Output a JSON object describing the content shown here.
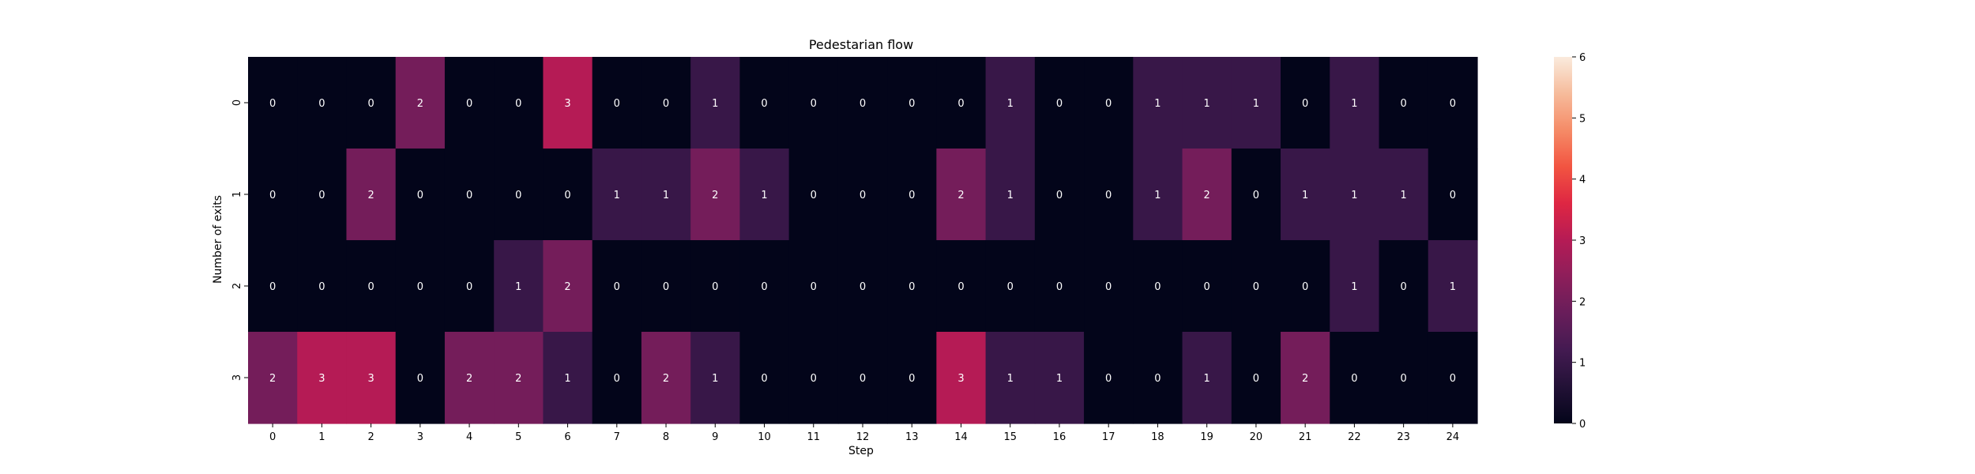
{
  "chart_data": {
    "type": "heatmap",
    "title": "Pedestarian flow",
    "xlabel": "Step",
    "ylabel": "Number of exits",
    "x_ticks": [
      "0",
      "1",
      "2",
      "3",
      "4",
      "5",
      "6",
      "7",
      "8",
      "9",
      "10",
      "11",
      "12",
      "13",
      "14",
      "15",
      "16",
      "17",
      "18",
      "19",
      "20",
      "21",
      "22",
      "23",
      "24"
    ],
    "y_ticks": [
      "0",
      "1",
      "2",
      "3"
    ],
    "values": [
      [
        0,
        0,
        0,
        2,
        0,
        0,
        3,
        0,
        0,
        1,
        0,
        0,
        0,
        0,
        0,
        1,
        0,
        0,
        1,
        1,
        1,
        0,
        1,
        0,
        0
      ],
      [
        0,
        0,
        2,
        0,
        0,
        0,
        0,
        1,
        1,
        2,
        1,
        0,
        0,
        0,
        2,
        1,
        0,
        0,
        1,
        2,
        0,
        1,
        1,
        1,
        0
      ],
      [
        0,
        0,
        0,
        0,
        0,
        1,
        2,
        0,
        0,
        0,
        0,
        0,
        0,
        0,
        0,
        0,
        0,
        0,
        0,
        0,
        0,
        0,
        1,
        0,
        1
      ],
      [
        2,
        3,
        3,
        0,
        2,
        2,
        1,
        0,
        2,
        1,
        0,
        0,
        0,
        0,
        3,
        1,
        1,
        0,
        0,
        1,
        0,
        2,
        0,
        0,
        0
      ]
    ],
    "annotate": true,
    "colorbar": {
      "range": [
        0,
        6
      ],
      "ticks": [
        "0",
        "1",
        "2",
        "3",
        "4",
        "5",
        "6"
      ],
      "colormap": "rocket"
    }
  }
}
